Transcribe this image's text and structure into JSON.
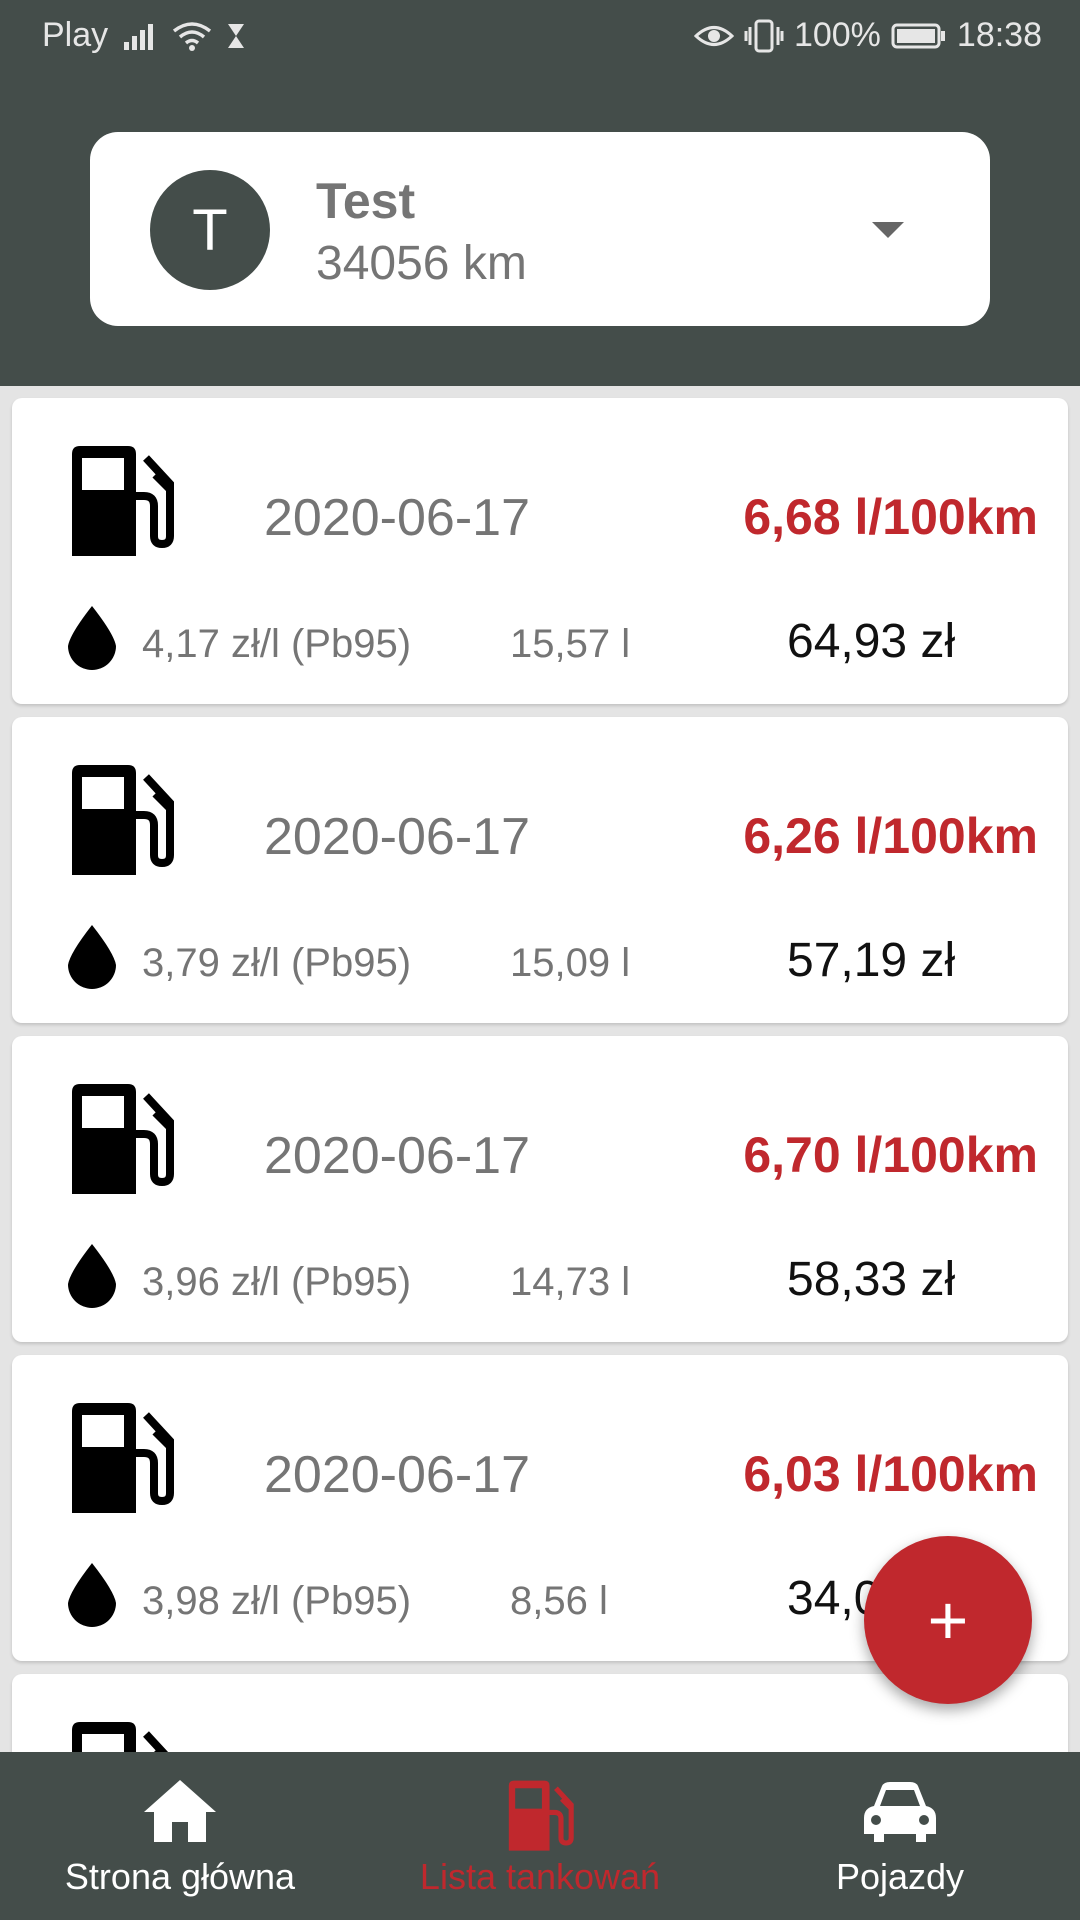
{
  "status_bar": {
    "carrier": "Play",
    "battery": "100%",
    "time": "18:38"
  },
  "vehicle": {
    "avatar_letter": "T",
    "name": "Test",
    "mileage": "34056 km"
  },
  "entries": [
    {
      "date": "2020-06-17",
      "consumption": "6,68 l/100km",
      "price": "4,17 zł/l (Pb95)",
      "volume": "15,57 l",
      "cost": "64,93 zł"
    },
    {
      "date": "2020-06-17",
      "consumption": "6,26 l/100km",
      "price": "3,79 zł/l (Pb95)",
      "volume": "15,09 l",
      "cost": "57,19 zł"
    },
    {
      "date": "2020-06-17",
      "consumption": "6,70 l/100km",
      "price": "3,96 zł/l (Pb95)",
      "volume": "14,73 l",
      "cost": "58,33 zł"
    },
    {
      "date": "2020-06-17",
      "consumption": "6,03 l/100km",
      "price": "3,98 zł/l (Pb95)",
      "volume": "8,56 l",
      "cost": "34,0"
    }
  ],
  "fab": {
    "label": "+"
  },
  "bottom_nav": [
    {
      "label": "Strona główna",
      "icon": "home-icon"
    },
    {
      "label": "Lista tankowań",
      "icon": "fuel-pump-icon",
      "active": true
    },
    {
      "label": "Pojazdy",
      "icon": "car-icon"
    }
  ],
  "colors": {
    "primary_dark": "#444D4A",
    "accent_red": "#C0282D",
    "text_gray": "#757575"
  }
}
